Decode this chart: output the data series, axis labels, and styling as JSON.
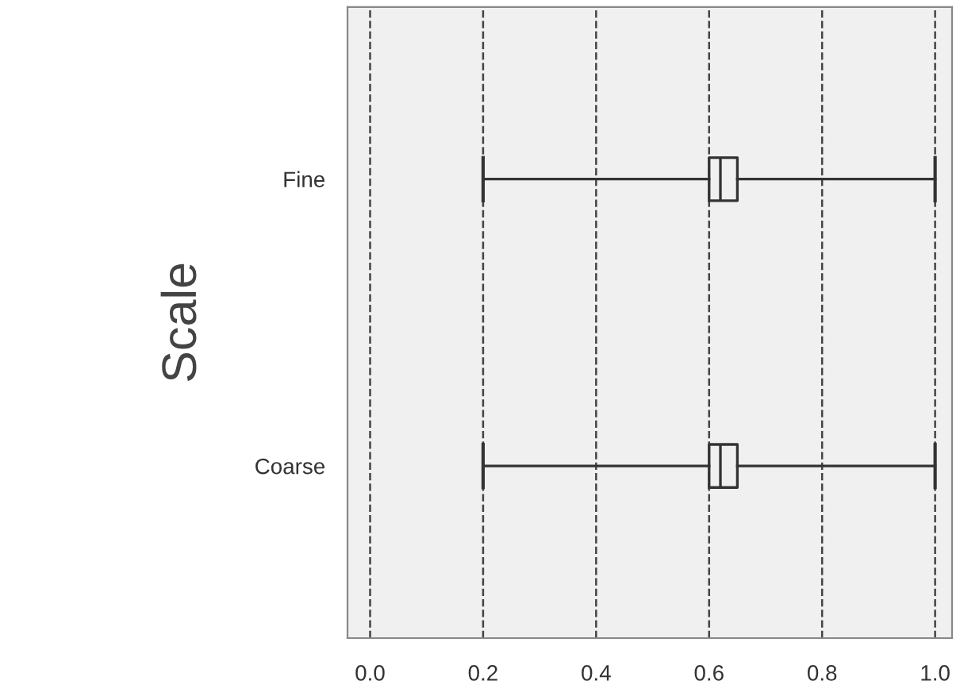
{
  "chart_data": {
    "type": "box",
    "orientation": "horizontal",
    "ylabel": "Scale",
    "categories": [
      "Fine",
      "Coarse"
    ],
    "boxes": [
      {
        "low": 0.2,
        "q1": 0.6,
        "median": 0.62,
        "q3": 0.65,
        "high": 1.0
      },
      {
        "low": 0.2,
        "q1": 0.6,
        "median": 0.62,
        "q3": 0.65,
        "high": 1.0
      }
    ],
    "xlim": [
      -0.04,
      1.03
    ],
    "xticks": [
      "0.0",
      0.2,
      0.4,
      0.6,
      0.8,
      "1.0"
    ],
    "grid": "x",
    "color": "#333333"
  }
}
